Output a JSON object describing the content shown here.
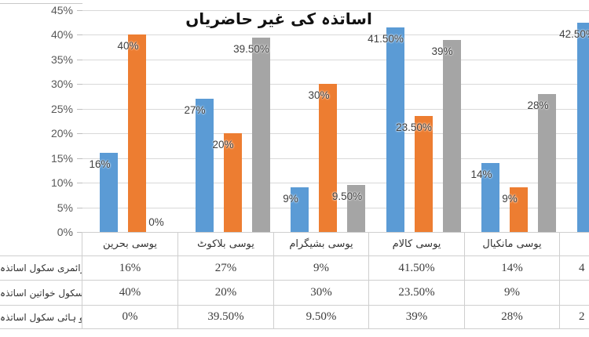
{
  "title": "اساتذہ کی غیر حاضریاں",
  "colors": {
    "series_blue": "#5B9BD5",
    "series_orange": "#ED7D31",
    "series_gray": "#A5A5A5",
    "gridline": "#D9D9D9",
    "table_border": "#CFCFCF",
    "label_text": "#404040",
    "axis_text": "#595959"
  },
  "y_axis": {
    "tick_labels": [
      "45%",
      "40%",
      "35%",
      "30%",
      "25%",
      "20%",
      "15%",
      "10%",
      "5%",
      "0%"
    ],
    "max_pct": 45,
    "step_pct": 5
  },
  "chart_data": {
    "type": "bar",
    "title": "اساتذہ کی غیر حاضریاں",
    "categories": [
      "یوسی بحرین",
      "یوسی بلاکوٹ",
      "یوسی بشیگرام",
      "یوسی کالام",
      "یوسی مانکیال",
      ""
    ],
    "series": [
      {
        "name": "پرائمری سکول اساتذہ",
        "color": "#5B9BD5",
        "values": [
          16,
          27,
          9,
          41.5,
          14,
          42.5
        ],
        "labels": [
          "16%",
          "27%",
          "9%",
          "41.50%",
          "14%",
          "42.50%"
        ]
      },
      {
        "name": "پرائمری سکول خواتین اساتذہ",
        "color": "#ED7D31",
        "values": [
          40,
          20,
          30,
          23.5,
          9,
          null
        ],
        "labels": [
          "40%",
          "20%",
          "30%",
          "23.50%",
          "9%",
          null
        ]
      },
      {
        "name": "مڈل و ہائی سکول اساتذہ",
        "color": "#A5A5A5",
        "values": [
          0,
          39.5,
          9.5,
          39,
          28,
          null
        ],
        "labels": [
          "0%",
          "39.50%",
          "9.50%",
          "39%",
          "28%",
          null
        ]
      }
    ],
    "ylim": [
      0,
      45
    ],
    "grid": true,
    "legend_position": "none",
    "note": "data table attached below chart; image cropped at left and right edges"
  },
  "table": {
    "corner_label": "",
    "col_headers": [
      "یوسی بحرین",
      "یوسی بلاکوٹ",
      "یوسی بشیگرام",
      "یوسی کالام",
      "یوسی مانکیال",
      ""
    ],
    "row_headers": [
      "پرائمری سکول اساتذہ",
      "پرائمری سکول خواتین اساتذہ",
      "مڈل و ہائی سکول اساتذہ"
    ],
    "rows": [
      [
        "16%",
        "27%",
        "9%",
        "41.50%",
        "14%",
        "4"
      ],
      [
        "40%",
        "20%",
        "30%",
        "23.50%",
        "9%",
        ""
      ],
      [
        "0%",
        "39.50%",
        "9.50%",
        "39%",
        "28%",
        "2"
      ]
    ]
  }
}
